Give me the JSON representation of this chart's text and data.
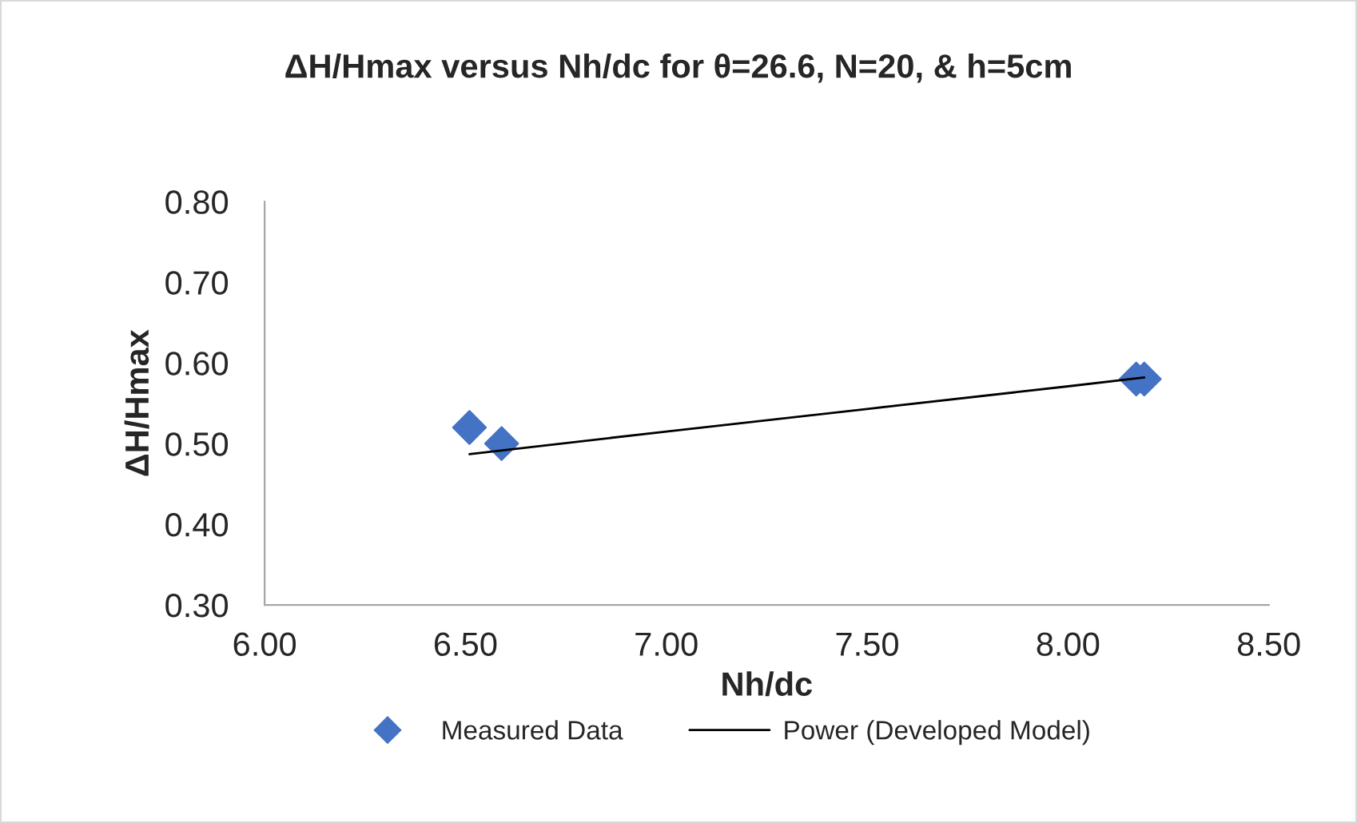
{
  "chart_data": {
    "type": "scatter",
    "title": "ΔH/Hmax versus Nh/dc for θ=26.6, N=20, & h=5cm",
    "xlabel": "Nh/dc",
    "ylabel": "ΔH/Hmax",
    "series": [
      {
        "name": "Measured Data",
        "color": "#4472c4",
        "x": [
          6.51,
          6.59,
          8.17,
          8.19
        ],
        "values": [
          0.52,
          0.5,
          0.58,
          0.58
        ],
        "marker": "diamond"
      },
      {
        "name": "Power (Developed Model)",
        "type": "line",
        "color": "#000000",
        "x": [
          6.51,
          7.0,
          7.5,
          8.0,
          8.19
        ],
        "values": [
          0.487,
          0.515,
          0.543,
          0.571,
          0.582
        ],
        "marker": "none",
        "line_style": "solid"
      }
    ],
    "xlim": [
      6.0,
      8.5
    ],
    "xticks": [
      {
        "value": 6.0,
        "label": "6.00"
      },
      {
        "value": 6.5,
        "label": "6.50"
      },
      {
        "value": 7.0,
        "label": "7.00"
      },
      {
        "value": 7.5,
        "label": "7.50"
      },
      {
        "value": 8.0,
        "label": "8.00"
      },
      {
        "value": 8.5,
        "label": "8.50"
      }
    ],
    "ylim": [
      0.3,
      0.8
    ],
    "yticks": [
      {
        "value": 0.3,
        "label": "0.30"
      },
      {
        "value": 0.4,
        "label": "0.40"
      },
      {
        "value": 0.5,
        "label": "0.50"
      },
      {
        "value": 0.6,
        "label": "0.60"
      },
      {
        "value": 0.7,
        "label": "0.70"
      },
      {
        "value": 0.8,
        "label": "0.80"
      }
    ],
    "grid": false,
    "legend": "bottom"
  }
}
